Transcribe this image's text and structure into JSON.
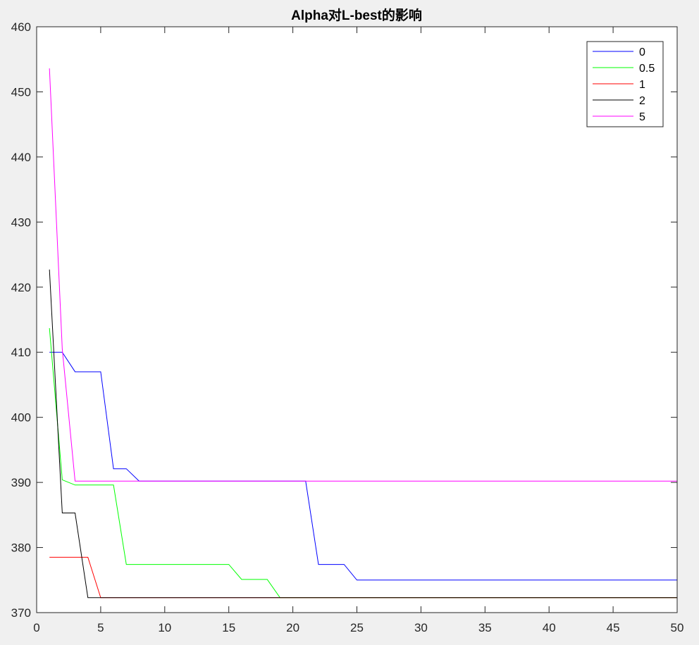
{
  "chart_data": {
    "type": "line",
    "title": "Alpha对L-best的影响",
    "xlabel": "",
    "ylabel": "",
    "xlim": [
      0,
      50
    ],
    "ylim": [
      370,
      460
    ],
    "xticks": [
      "0",
      "5",
      "10",
      "15",
      "20",
      "25",
      "30",
      "35",
      "40",
      "45",
      "50"
    ],
    "yticks": [
      "370",
      "380",
      "390",
      "400",
      "410",
      "420",
      "430",
      "440",
      "450",
      "460"
    ],
    "grid": false,
    "legend_position": "top-right",
    "series": [
      {
        "name": "0",
        "color": "#0000ff",
        "x": [
          1,
          2,
          3,
          4,
          5,
          6,
          7,
          8,
          9,
          10,
          11,
          12,
          13,
          14,
          15,
          16,
          17,
          18,
          19,
          20,
          21,
          22,
          23,
          24,
          25,
          26,
          27,
          28,
          29,
          30,
          31,
          32,
          33,
          34,
          35,
          36,
          37,
          38,
          39,
          40,
          41,
          42,
          43,
          44,
          45,
          46,
          47,
          48,
          49,
          50
        ],
        "y": [
          410,
          410,
          407,
          407,
          407,
          392.1,
          392.1,
          390.2,
          390.2,
          390.2,
          390.2,
          390.2,
          390.2,
          390.2,
          390.2,
          390.2,
          390.2,
          390.2,
          390.2,
          390.2,
          390.2,
          377.4,
          377.4,
          377.4,
          375,
          375,
          375,
          375,
          375,
          375,
          375,
          375,
          375,
          375,
          375,
          375,
          375,
          375,
          375,
          375,
          375,
          375,
          375,
          375,
          375,
          375,
          375,
          375,
          375,
          375
        ]
      },
      {
        "name": "0.5",
        "color": "#00ff00",
        "x": [
          1,
          2,
          3,
          4,
          5,
          6,
          7,
          8,
          9,
          10,
          11,
          12,
          13,
          14,
          15,
          16,
          17,
          18,
          19,
          20,
          21,
          22,
          23,
          24,
          25,
          26,
          27,
          28,
          29,
          30,
          31,
          32,
          33,
          34,
          35,
          36,
          37,
          38,
          39,
          40,
          41,
          42,
          43,
          44,
          45,
          46,
          47,
          48,
          49,
          50
        ],
        "y": [
          413.7,
          390.4,
          389.6,
          389.6,
          389.6,
          389.6,
          377.4,
          377.4,
          377.4,
          377.4,
          377.4,
          377.4,
          377.4,
          377.4,
          377.4,
          375.1,
          375.1,
          375.1,
          372.3,
          372.3,
          372.3,
          372.3,
          372.3,
          372.3,
          372.3,
          372.3,
          372.3,
          372.3,
          372.3,
          372.3,
          372.3,
          372.3,
          372.3,
          372.3,
          372.3,
          372.3,
          372.3,
          372.3,
          372.3,
          372.3,
          372.3,
          372.3,
          372.3,
          372.3,
          372.3,
          372.3,
          372.3,
          372.3,
          372.3,
          372.3
        ]
      },
      {
        "name": "1",
        "color": "#ff0000",
        "x": [
          1,
          2,
          3,
          4,
          5,
          6,
          7,
          8,
          9,
          10,
          11,
          12,
          13,
          14,
          15,
          16,
          17,
          18,
          19,
          20,
          21,
          22,
          23,
          24,
          25,
          26,
          27,
          28,
          29,
          30,
          31,
          32,
          33,
          34,
          35,
          36,
          37,
          38,
          39,
          40,
          41,
          42,
          43,
          44,
          45,
          46,
          47,
          48,
          49,
          50
        ],
        "y": [
          378.5,
          378.5,
          378.5,
          378.5,
          372.3,
          372.3,
          372.3,
          372.3,
          372.3,
          372.3,
          372.3,
          372.3,
          372.3,
          372.3,
          372.3,
          372.3,
          372.3,
          372.3,
          372.3,
          372.3,
          372.3,
          372.3,
          372.3,
          372.3,
          372.3,
          372.3,
          372.3,
          372.3,
          372.3,
          372.3,
          372.3,
          372.3,
          372.3,
          372.3,
          372.3,
          372.3,
          372.3,
          372.3,
          372.3,
          372.3,
          372.3,
          372.3,
          372.3,
          372.3,
          372.3,
          372.3,
          372.3,
          372.3,
          372.3,
          372.3
        ]
      },
      {
        "name": "2",
        "color": "#000000",
        "x": [
          1,
          2,
          3,
          4,
          5,
          6,
          7,
          8,
          9,
          10,
          11,
          12,
          13,
          14,
          15,
          16,
          17,
          18,
          19,
          20,
          21,
          22,
          23,
          24,
          25,
          26,
          27,
          28,
          29,
          30,
          31,
          32,
          33,
          34,
          35,
          36,
          37,
          38,
          39,
          40,
          41,
          42,
          43,
          44,
          45,
          46,
          47,
          48,
          49,
          50
        ],
        "y": [
          422.7,
          385.3,
          385.3,
          372.3,
          372.3,
          372.3,
          372.3,
          372.3,
          372.3,
          372.3,
          372.3,
          372.3,
          372.3,
          372.3,
          372.3,
          372.3,
          372.3,
          372.3,
          372.3,
          372.3,
          372.3,
          372.3,
          372.3,
          372.3,
          372.3,
          372.3,
          372.3,
          372.3,
          372.3,
          372.3,
          372.3,
          372.3,
          372.3,
          372.3,
          372.3,
          372.3,
          372.3,
          372.3,
          372.3,
          372.3,
          372.3,
          372.3,
          372.3,
          372.3,
          372.3,
          372.3,
          372.3,
          372.3,
          372.3,
          372.3
        ]
      },
      {
        "name": "5",
        "color": "#ff00ff",
        "x": [
          1,
          2,
          3,
          4,
          5,
          6,
          7,
          8,
          9,
          10,
          11,
          12,
          13,
          14,
          15,
          16,
          17,
          18,
          19,
          20,
          21,
          22,
          23,
          24,
          25,
          26,
          27,
          28,
          29,
          30,
          31,
          32,
          33,
          34,
          35,
          36,
          37,
          38,
          39,
          40,
          41,
          42,
          43,
          44,
          45,
          46,
          47,
          48,
          49,
          50
        ],
        "y": [
          453.6,
          410.5,
          390.2,
          390.2,
          390.2,
          390.2,
          390.2,
          390.2,
          390.2,
          390.2,
          390.2,
          390.2,
          390.2,
          390.2,
          390.2,
          390.2,
          390.2,
          390.2,
          390.2,
          390.2,
          390.2,
          390.2,
          390.2,
          390.2,
          390.2,
          390.2,
          390.2,
          390.2,
          390.2,
          390.2,
          390.2,
          390.2,
          390.2,
          390.2,
          390.2,
          390.2,
          390.2,
          390.2,
          390.2,
          390.2,
          390.2,
          390.2,
          390.2,
          390.2,
          390.2,
          390.2,
          390.2,
          390.2,
          390.2,
          390.2
        ]
      }
    ]
  }
}
